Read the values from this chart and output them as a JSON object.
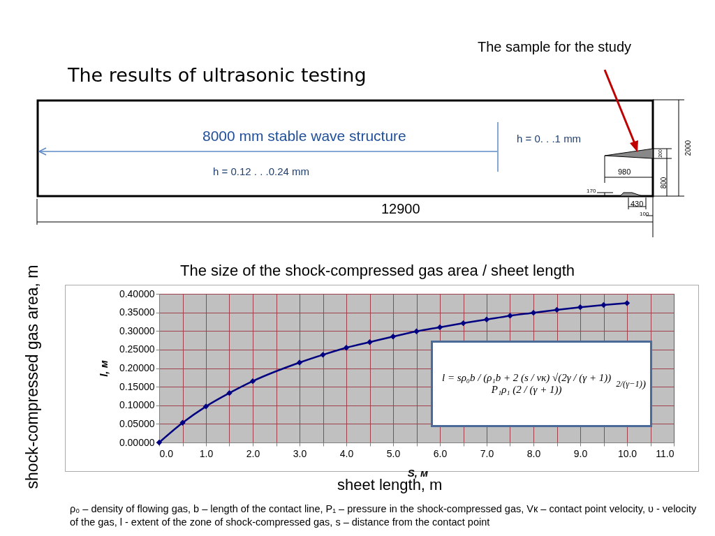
{
  "chart_data": {
    "type": "line",
    "title": "The size of the shock-compressed gas area / sheet length",
    "xlabel": "S, м",
    "ylabel": "l, м",
    "x": [
      0,
      0.5,
      1,
      1.5,
      2,
      3,
      3.5,
      4,
      4.5,
      5,
      5.5,
      6,
      6.5,
      7,
      7.5,
      8,
      8.5,
      9,
      9.5,
      10
    ],
    "series": [
      {
        "color": "#000080",
        "values": [
          0,
          0.053,
          0.097,
          0.133,
          0.165,
          0.215,
          0.236,
          0.255,
          0.27,
          0.285,
          0.299,
          0.31,
          0.321,
          0.331,
          0.341,
          0.349,
          0.357,
          0.364,
          0.37,
          0.375
        ]
      }
    ],
    "xlim": [
      0,
      11
    ],
    "xticks": [
      {
        "value": 0,
        "label": "0.0"
      },
      {
        "value": 0.5,
        "label": null
      },
      {
        "value": 1,
        "label": "1.0"
      },
      {
        "value": 1.5,
        "label": null
      },
      {
        "value": 2,
        "label": "2.0"
      },
      {
        "value": 2.5,
        "label": null
      },
      {
        "value": 3,
        "label": "3.0"
      },
      {
        "value": 3.5,
        "label": null
      },
      {
        "value": 4,
        "label": "4.0"
      },
      {
        "value": 4.5,
        "label": null
      },
      {
        "value": 5,
        "label": "5.0"
      },
      {
        "value": 5.5,
        "label": null
      },
      {
        "value": 6,
        "label": "6.0"
      },
      {
        "value": 6.5,
        "label": null
      },
      {
        "value": 7,
        "label": "7.0"
      },
      {
        "value": 7.5,
        "label": null
      },
      {
        "value": 8,
        "label": "8.0"
      },
      {
        "value": 8.5,
        "label": null
      },
      {
        "value": 9,
        "label": "9.0"
      },
      {
        "value": 9.5,
        "label": null
      },
      {
        "value": 10,
        "label": "10.0"
      },
      {
        "value": 10.5,
        "label": null
      },
      {
        "value": 11,
        "label": "11.0"
      }
    ],
    "ylim": [
      0,
      0.4
    ],
    "yticks": [
      {
        "value": 0,
        "label": "0.00000"
      },
      {
        "value": 0.05,
        "label": "0.05000"
      },
      {
        "value": 0.1,
        "label": "0.10000"
      },
      {
        "value": 0.15,
        "label": "0.15000"
      },
      {
        "value": 0.2,
        "label": "0.20000"
      },
      {
        "value": 0.25,
        "label": "0.25000"
      },
      {
        "value": 0.3,
        "label": "0.30000"
      },
      {
        "value": 0.35,
        "label": "0.35000"
      },
      {
        "value": 0.4,
        "label": "0.40000"
      }
    ],
    "grid": true,
    "marker": "diamond",
    "line_style": "solid",
    "annotations": [
      "The results of ultrasonic testing",
      "The sample for the study",
      "8000 mm  stable wave structure",
      "h = 0. . .1 mm",
      "h = 0.12 . . .0.24 mm",
      "12900",
      "2000",
      "200",
      "980",
      "800",
      "170",
      "430",
      "100",
      "shock-compressed gas area, m",
      "sheet length, m",
      "l = sρ₀b / (ρ₁b + 2 (s / vк) √(2γ / (γ + 1)) P₁ρ₁ (2 / (γ + 1))$^{2/(γ−1)}$)",
      "ρ₀ – density of flowing gas, b – length of the contact line, P₁ – pressure in the shock-compressed gas,  Vк – contact point velocity, υ - velocity of the gas, l - extent of the zone of shock-compressed gas, s – distance from the contact point"
    ]
  }
}
